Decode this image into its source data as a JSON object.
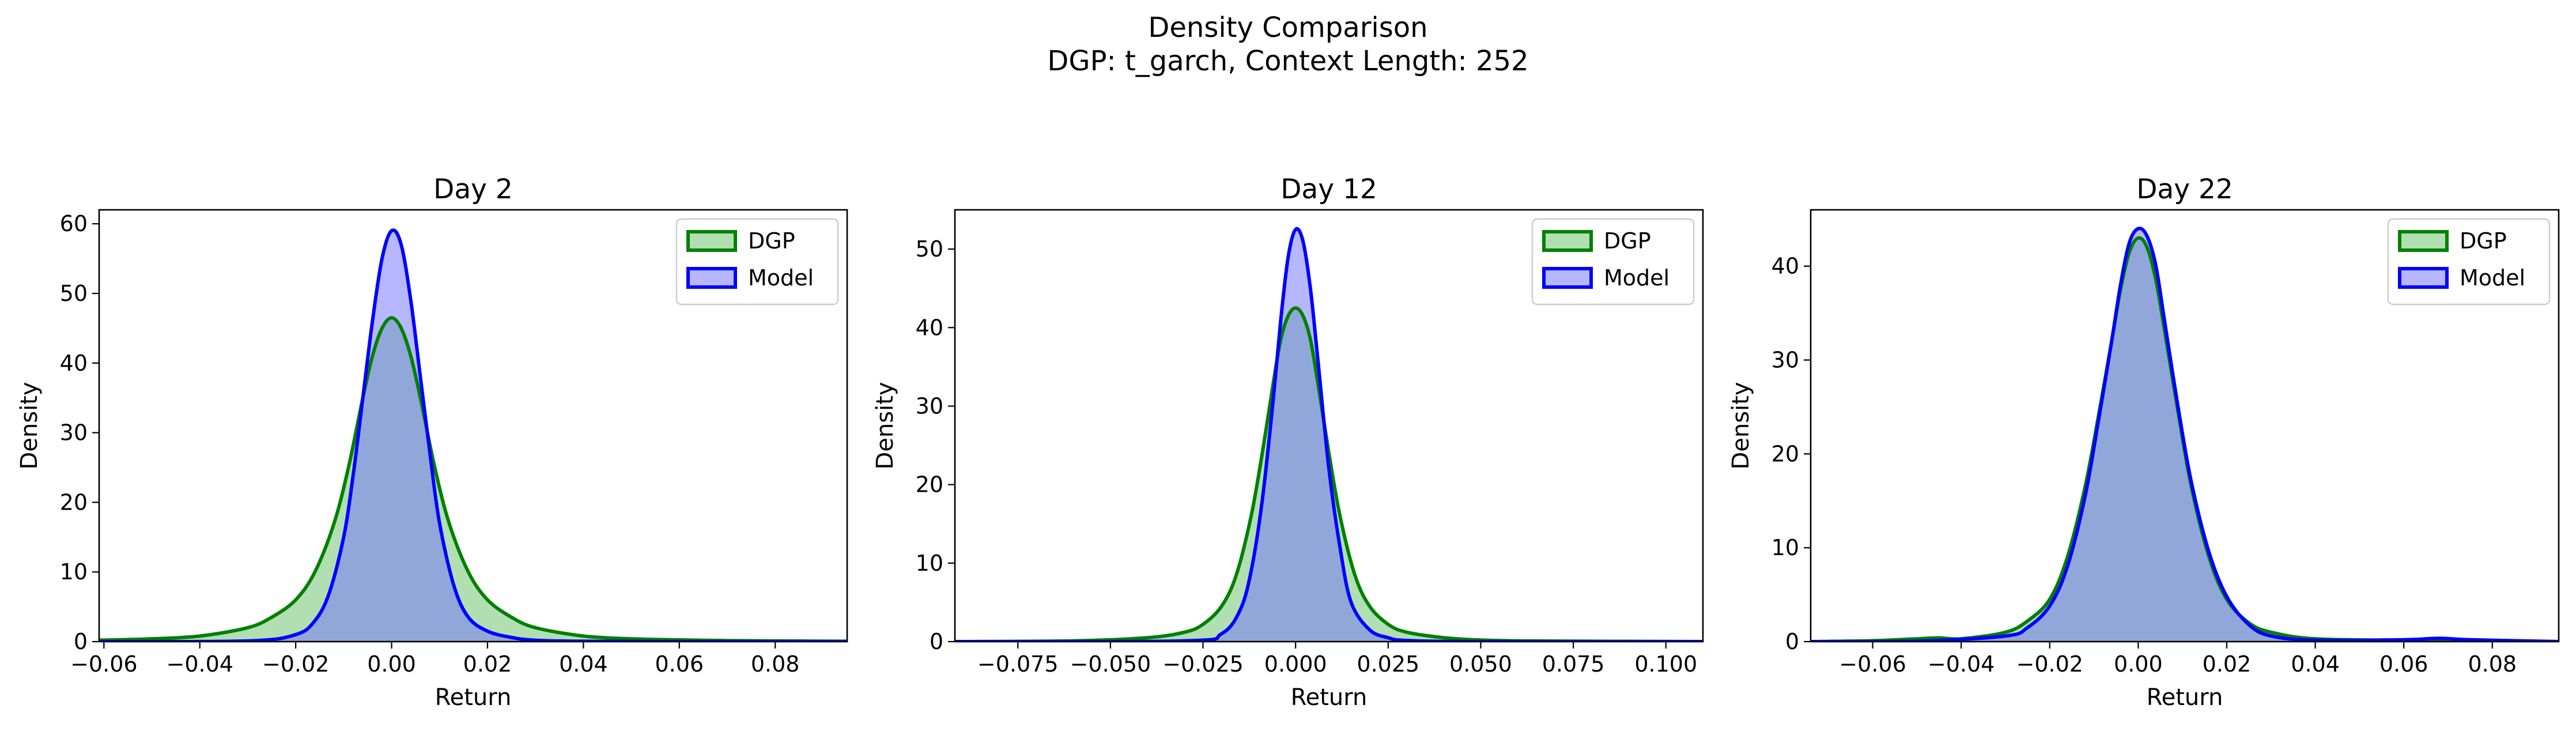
{
  "figure": {
    "title_line1": "Density Comparison",
    "title_line2": "DGP: t_garch, Context Length: 252"
  },
  "colors": {
    "dgp_line": "#008000",
    "dgp_fill": "#7fc97f",
    "model_line": "#0000ff",
    "model_fill": "#6f6fff"
  },
  "chart_data": [
    {
      "type": "area",
      "title": "Day 2",
      "xlabel": "Return",
      "ylabel": "Density",
      "xlim": [
        -0.061,
        0.095
      ],
      "ylim": [
        0,
        62
      ],
      "xticks": [
        -0.06,
        -0.04,
        -0.02,
        0.0,
        0.02,
        0.04,
        0.06,
        0.08
      ],
      "xtick_labels": [
        "−0.06",
        "−0.04",
        "−0.02",
        "0.00",
        "0.02",
        "0.04",
        "0.06",
        "0.08"
      ],
      "yticks": [
        0,
        10,
        20,
        30,
        40,
        50,
        60
      ],
      "ytick_labels": [
        "0",
        "10",
        "20",
        "30",
        "40",
        "50",
        "60"
      ],
      "legend": "upper-right",
      "series": [
        {
          "name": "DGP",
          "x": [
            -0.061,
            -0.05,
            -0.04,
            -0.03,
            -0.025,
            -0.02,
            -0.016,
            -0.012,
            -0.009,
            -0.006,
            -0.004,
            -0.002,
            0.0,
            0.002,
            0.004,
            0.006,
            0.009,
            0.012,
            0.016,
            0.02,
            0.025,
            0.03,
            0.04,
            0.05,
            0.06,
            0.07,
            0.08,
            0.095
          ],
          "values": [
            0.2,
            0.4,
            0.8,
            2.0,
            3.5,
            6.0,
            10.0,
            17.0,
            25.0,
            35.0,
            41.0,
            45.0,
            46.5,
            45.0,
            41.0,
            35.0,
            25.0,
            17.0,
            10.0,
            6.0,
            3.5,
            2.0,
            0.8,
            0.4,
            0.25,
            0.15,
            0.1,
            0.05
          ]
        },
        {
          "name": "Model",
          "x": [
            -0.061,
            -0.03,
            -0.02,
            -0.016,
            -0.013,
            -0.01,
            -0.008,
            -0.006,
            -0.004,
            -0.002,
            0.0,
            0.002,
            0.004,
            0.006,
            0.008,
            0.01,
            0.013,
            0.016,
            0.02,
            0.025,
            0.03,
            0.04,
            0.06,
            0.095
          ],
          "values": [
            0.0,
            0.1,
            1.0,
            3.0,
            7.0,
            15.0,
            24.0,
            35.0,
            46.0,
            55.0,
            59.0,
            57.0,
            49.0,
            38.0,
            27.0,
            17.0,
            8.0,
            3.5,
            1.5,
            0.6,
            0.2,
            0.05,
            0.0,
            0.0
          ]
        }
      ]
    },
    {
      "type": "area",
      "title": "Day 12",
      "xlabel": "Return",
      "ylabel": "Density",
      "xlim": [
        -0.092,
        0.11
      ],
      "ylim": [
        0,
        55
      ],
      "xticks": [
        -0.075,
        -0.05,
        -0.025,
        0.0,
        0.025,
        0.05,
        0.075,
        0.1
      ],
      "xtick_labels": [
        "−0.075",
        "−0.050",
        "−0.025",
        "0.000",
        "0.025",
        "0.050",
        "0.075",
        "0.100"
      ],
      "yticks": [
        0,
        10,
        20,
        30,
        40,
        50
      ],
      "ytick_labels": [
        "0",
        "10",
        "20",
        "30",
        "40",
        "50"
      ],
      "legend": "upper-right",
      "series": [
        {
          "name": "DGP",
          "x": [
            -0.092,
            -0.06,
            -0.04,
            -0.03,
            -0.025,
            -0.02,
            -0.016,
            -0.012,
            -0.009,
            -0.006,
            -0.004,
            -0.002,
            0.0,
            0.002,
            0.004,
            0.006,
            0.009,
            0.012,
            0.016,
            0.02,
            0.025,
            0.03,
            0.04,
            0.05,
            0.06,
            0.08,
            0.11
          ],
          "values": [
            0.0,
            0.1,
            0.5,
            1.2,
            2.2,
            4.5,
            8.5,
            16.0,
            24.0,
            33.0,
            38.5,
            41.5,
            42.5,
            41.5,
            38.5,
            33.0,
            24.0,
            16.0,
            8.5,
            4.5,
            2.2,
            1.2,
            0.5,
            0.2,
            0.1,
            0.05,
            0.0
          ]
        },
        {
          "name": "Model",
          "x": [
            -0.092,
            -0.03,
            -0.02,
            -0.015,
            -0.012,
            -0.009,
            -0.006,
            -0.004,
            -0.002,
            0.0,
            0.002,
            0.004,
            0.006,
            0.009,
            0.012,
            0.015,
            0.02,
            0.025,
            0.03,
            0.05,
            0.11
          ],
          "values": [
            0.0,
            0.1,
            1.0,
            4.0,
            9.0,
            18.0,
            31.0,
            41.0,
            49.0,
            52.5,
            51.0,
            45.0,
            36.0,
            22.0,
            12.0,
            5.0,
            1.5,
            0.5,
            0.15,
            0.0,
            0.0
          ]
        }
      ]
    },
    {
      "type": "area",
      "title": "Day 22",
      "xlabel": "Return",
      "ylabel": "Density",
      "xlim": [
        -0.074,
        0.095
      ],
      "ylim": [
        0,
        46
      ],
      "xticks": [
        -0.06,
        -0.04,
        -0.02,
        0.0,
        0.02,
        0.04,
        0.06,
        0.08
      ],
      "xtick_labels": [
        "−0.06",
        "−0.04",
        "−0.02",
        "0.00",
        "0.02",
        "0.04",
        "0.06",
        "0.08"
      ],
      "yticks": [
        0,
        10,
        20,
        30,
        40
      ],
      "ytick_labels": [
        "0",
        "10",
        "20",
        "30",
        "40"
      ],
      "legend": "upper-right",
      "series": [
        {
          "name": "DGP",
          "x": [
            -0.074,
            -0.06,
            -0.05,
            -0.045,
            -0.04,
            -0.03,
            -0.025,
            -0.02,
            -0.016,
            -0.012,
            -0.009,
            -0.006,
            -0.004,
            -0.002,
            0.0,
            0.002,
            0.004,
            0.006,
            0.009,
            0.012,
            0.016,
            0.02,
            0.025,
            0.03,
            0.04,
            0.06,
            0.07,
            0.08,
            0.095
          ],
          "values": [
            0.0,
            0.1,
            0.3,
            0.4,
            0.3,
            1.0,
            2.2,
            4.5,
            9.0,
            16.5,
            24.0,
            32.0,
            37.5,
            41.5,
            43.0,
            42.0,
            38.5,
            33.0,
            24.5,
            16.5,
            9.0,
            4.5,
            2.0,
            1.0,
            0.3,
            0.15,
            0.2,
            0.1,
            0.0
          ]
        },
        {
          "name": "Model",
          "x": [
            -0.074,
            -0.05,
            -0.03,
            -0.025,
            -0.02,
            -0.016,
            -0.012,
            -0.009,
            -0.006,
            -0.004,
            -0.002,
            0.0,
            0.002,
            0.004,
            0.006,
            0.009,
            0.012,
            0.016,
            0.02,
            0.025,
            0.03,
            0.04,
            0.06,
            0.068,
            0.075,
            0.095
          ],
          "values": [
            0.0,
            0.05,
            0.6,
            1.5,
            3.8,
            8.0,
            15.5,
            23.5,
            32.0,
            38.0,
            42.5,
            44.0,
            43.2,
            40.0,
            34.0,
            25.0,
            17.0,
            9.5,
            4.8,
            1.8,
            0.6,
            0.15,
            0.2,
            0.35,
            0.2,
            0.0
          ]
        }
      ]
    }
  ]
}
